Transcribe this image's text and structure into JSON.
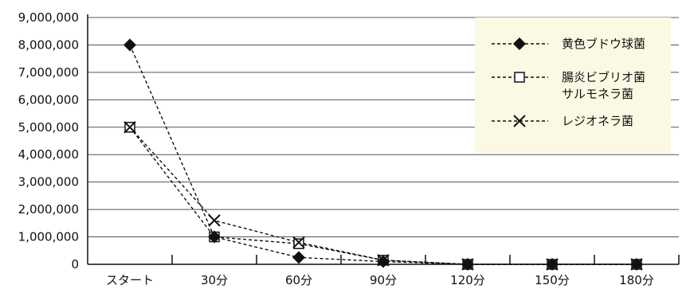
{
  "chart_data": {
    "type": "line",
    "categories": [
      "スタート",
      "30分",
      "60分",
      "90分",
      "120分",
      "150分",
      "180分"
    ],
    "ylim": [
      0,
      9000000
    ],
    "yticks": [
      "0",
      "1,000,000",
      "2,000,000",
      "3,000,000",
      "4,000,000",
      "5,000,000",
      "6,000,000",
      "7,000,000",
      "8,000,000",
      "9,000,000"
    ],
    "grid": true,
    "legend_position": "top-right",
    "legend_background": "#fbf8e3",
    "series": [
      {
        "name": "黄色ブドウ球菌",
        "marker": "diamond",
        "values": [
          8000000,
          1000000,
          250000,
          100000,
          0,
          0,
          0
        ]
      },
      {
        "name": "腸炎ビブリオ菌 サルモネラ菌",
        "name_lines": [
          "腸炎ビブリオ菌",
          "サルモネラ菌"
        ],
        "marker": "square",
        "values": [
          5000000,
          1000000,
          750000,
          150000,
          0,
          0,
          0
        ]
      },
      {
        "name": "レジオネラ菌",
        "marker": "x",
        "values": [
          5000000,
          1600000,
          800000,
          150000,
          0,
          0,
          0
        ]
      }
    ]
  }
}
